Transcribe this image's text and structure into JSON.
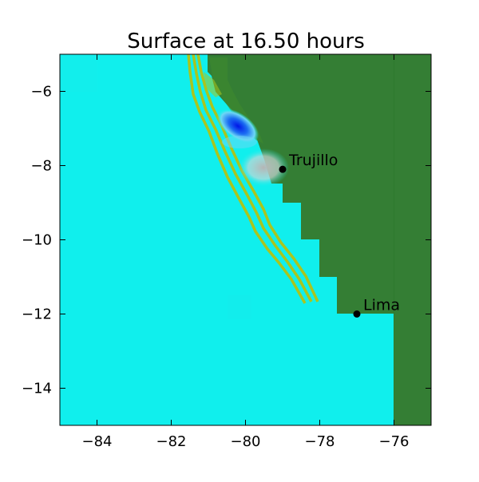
{
  "title": "Surface at 16.50 hours",
  "colors": {
    "ocean": "#10EFED",
    "land": "#347E34",
    "land_light": "#3F8A2F",
    "contour": "#A9C51E",
    "wave_deep": "#0015E8",
    "wave_mid": "#1B6CF2",
    "wave_light": "#6ED7F5",
    "wave_grey": "#B5B5B5",
    "marker": "#000000"
  },
  "x_axis": {
    "range": [
      -85,
      -75
    ],
    "ticks": [
      "−84",
      "−82",
      "−80",
      "−78",
      "−76"
    ]
  },
  "y_axis": {
    "range": [
      -15,
      -5
    ],
    "ticks": [
      "−6",
      "−8",
      "−10",
      "−12",
      "−14"
    ]
  },
  "cities": [
    {
      "name": "Trujillo",
      "lon": -79.0,
      "lat": -8.1
    },
    {
      "name": "Lima",
      "lon": -77.0,
      "lat": -12.0
    }
  ]
}
